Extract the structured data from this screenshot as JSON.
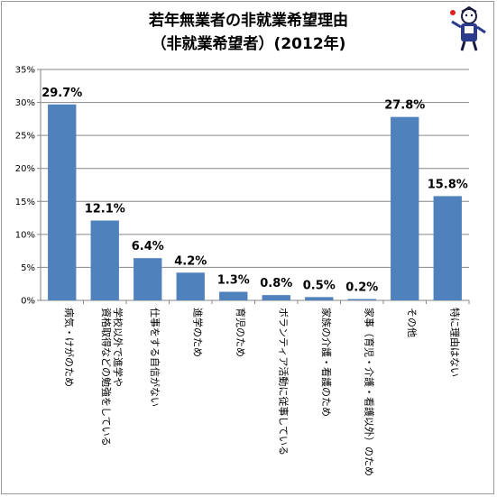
{
  "chart_data": {
    "type": "bar",
    "title": "若年無業者の非就業希望理由",
    "subtitle": "（非就業希望者）(2012年)",
    "xlabel": "",
    "ylabel": "",
    "ylim": [
      0,
      35
    ],
    "yticks": [
      0,
      5,
      10,
      15,
      20,
      25,
      30,
      35
    ],
    "ytick_suffix": "%",
    "grid": true,
    "bar_color": "#4f81bd",
    "categories": [
      "病気・けがのため",
      "学校以外で進学や資格取得などの勉強をしている",
      "仕事をする自信がない",
      "進学のため",
      "育児のため",
      "ボランティア活動に従事している",
      "家族の介護・看護のため",
      "家事（育児・介護・看護以外）のため",
      "その他",
      "特に理由はない"
    ],
    "category_lines": [
      [
        "病気・けがのため"
      ],
      [
        "学校以外で進学や",
        "資格取得などの勉強をしている"
      ],
      [
        "仕事をする自信がない"
      ],
      [
        "進学のため"
      ],
      [
        "育児のため"
      ],
      [
        "ボランティア活動に従事している"
      ],
      [
        "家族の介護・看護のため"
      ],
      [
        "家事（育児・介護・看護以外）のため"
      ],
      [
        "その他"
      ],
      [
        "特に理由はない"
      ]
    ],
    "values": [
      29.7,
      12.1,
      6.4,
      4.2,
      1.3,
      0.8,
      0.5,
      0.2,
      27.8,
      15.8
    ],
    "data_labels": [
      "29.7%",
      "12.1%",
      "6.4%",
      "4.2%",
      "1.3%",
      "0.8%",
      "0.5%",
      "0.2%",
      "27.8%",
      "15.8%"
    ]
  },
  "mascot_icon": "mascot-figure-icon"
}
